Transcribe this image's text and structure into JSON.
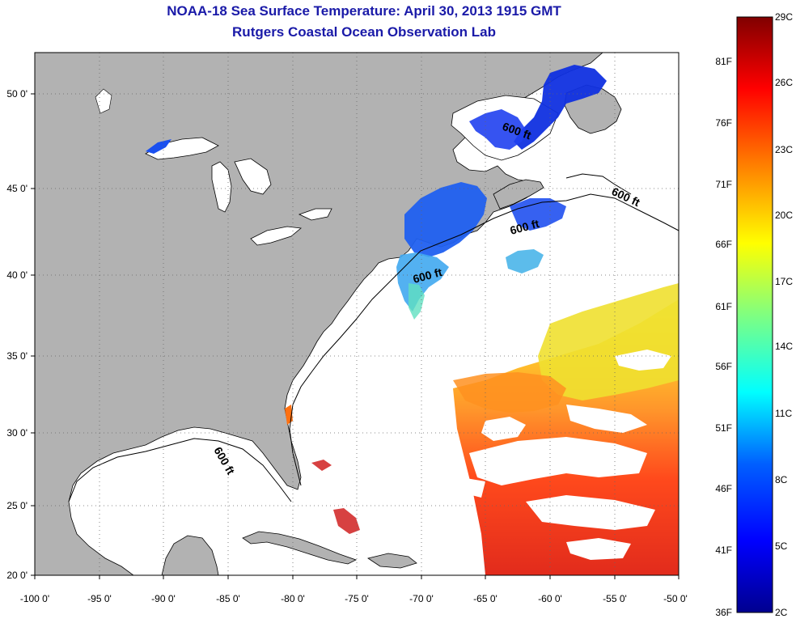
{
  "title": "NOAA-18 Sea Surface Temperature:  April 30, 2013 1915 GMT",
  "subtitle": "Rutgers Coastal Ocean Observation Lab",
  "axes": {
    "lon_labels": [
      "-100 0'",
      "-95 0'",
      "-90 0'",
      "-85 0'",
      "-80 0'",
      "-75 0'",
      "-70 0'",
      "-65 0'",
      "-60 0'",
      "-55 0'",
      "-50 0'"
    ],
    "lon_values": [
      -100,
      -95,
      -90,
      -85,
      -80,
      -75,
      -70,
      -65,
      -60,
      -55,
      -50
    ],
    "lat_labels": [
      "50 0'",
      "45 0'",
      "40 0'",
      "35 0'",
      "30 0'",
      "25 0'",
      "20 0'"
    ],
    "lat_values": [
      50,
      45,
      40,
      35,
      30,
      25,
      20
    ],
    "lon_range": [
      -100,
      -50
    ],
    "lat_range": [
      20,
      52.2
    ],
    "grid": "dotted"
  },
  "contour_labels": [
    "600 ft",
    "600 ft",
    "600 ft",
    "600 ft",
    "600 ft"
  ],
  "colorbar": {
    "celsius_labels": [
      "29C",
      "26C",
      "23C",
      "20C",
      "17C",
      "14C",
      "11C",
      "8C",
      "5C",
      "2C"
    ],
    "fahrenheit_labels": [
      "81F",
      "76F",
      "71F",
      "66F",
      "61F",
      "56F",
      "51F",
      "46F",
      "41F",
      "36F"
    ],
    "colors": [
      "#00008f",
      "#0000ff",
      "#0080ff",
      "#00ffff",
      "#80ff80",
      "#ffff00",
      "#ff8000",
      "#ff0000",
      "#800000"
    ]
  },
  "colors": {
    "land": "#b2b2b2",
    "title": "#1a1aa8"
  }
}
